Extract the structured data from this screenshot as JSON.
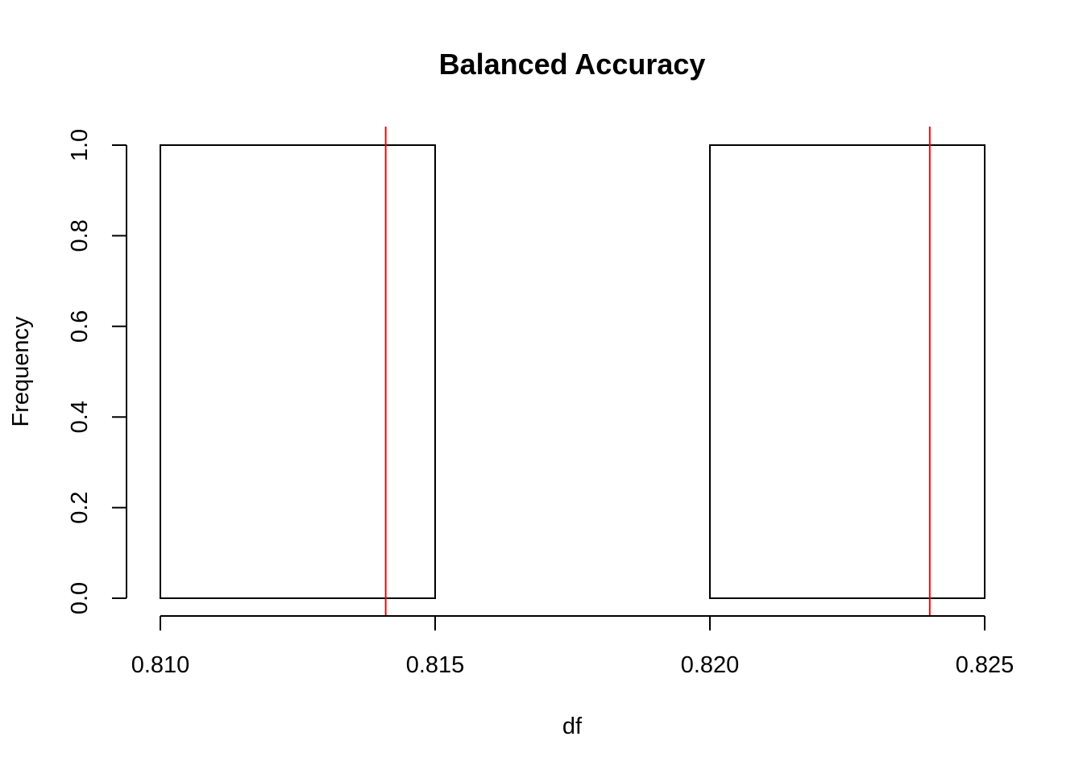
{
  "chart_data": {
    "type": "bar",
    "subtype": "histogram",
    "title": "Balanced Accuracy",
    "xlabel": "df",
    "ylabel": "Frequency",
    "xlim": [
      0.81,
      0.825
    ],
    "ylim": [
      0,
      1
    ],
    "bins": [
      {
        "start": 0.81,
        "end": 0.815,
        "count": 1
      },
      {
        "start": 0.815,
        "end": 0.82,
        "count": 0
      },
      {
        "start": 0.82,
        "end": 0.825,
        "count": 1
      }
    ],
    "x_ticks": [
      {
        "value": 0.81,
        "label": "0.810"
      },
      {
        "value": 0.815,
        "label": "0.815"
      },
      {
        "value": 0.82,
        "label": "0.820"
      },
      {
        "value": 0.825,
        "label": "0.825"
      }
    ],
    "y_ticks": [
      {
        "value": 0.0,
        "label": "0.0"
      },
      {
        "value": 0.2,
        "label": "0.2"
      },
      {
        "value": 0.4,
        "label": "0.4"
      },
      {
        "value": 0.6,
        "label": "0.6"
      },
      {
        "value": 0.8,
        "label": "0.8"
      },
      {
        "value": 1.0,
        "label": "1.0"
      }
    ],
    "reference_lines": [
      {
        "value": 0.8141,
        "color": "#ff0000"
      },
      {
        "value": 0.824,
        "color": "#ff0000"
      }
    ],
    "colors": {
      "bar_stroke": "#000000",
      "axis": "#000000",
      "reference": "#ff0000"
    }
  }
}
